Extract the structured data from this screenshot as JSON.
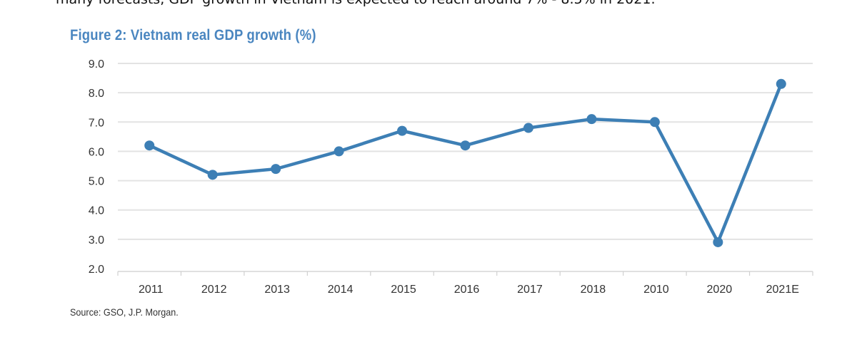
{
  "intro_text": "many forecasts, GDP growth in Vietnam is expected to reach around 7% - 8.5% in 2021.",
  "figure": {
    "title": "Figure 2: Vietnam real GDP growth (%)",
    "source": "Source: GSO, J.P. Morgan.",
    "line_color": "#3d7fb5"
  },
  "chart_data": {
    "type": "line",
    "title": "Figure 2: Vietnam real GDP growth (%)",
    "xlabel": "",
    "ylabel": "",
    "categories": [
      "2011",
      "2012",
      "2013",
      "2014",
      "2015",
      "2016",
      "2017",
      "2018",
      "2010",
      "2020",
      "2021E"
    ],
    "series": [
      {
        "name": "Vietnam real GDP growth (%)",
        "values": [
          6.2,
          5.2,
          5.4,
          6.0,
          6.7,
          6.2,
          6.8,
          7.1,
          7.0,
          2.9,
          8.3
        ]
      }
    ],
    "ylim": [
      2.0,
      9.0
    ],
    "yticks": [
      "9.0",
      "8.0",
      "7.0",
      "6.0",
      "5.0",
      "4.0",
      "3.0",
      "2.0"
    ],
    "grid": true,
    "legend": "none",
    "markers": true,
    "source": "Source: GSO, J.P. Morgan."
  }
}
